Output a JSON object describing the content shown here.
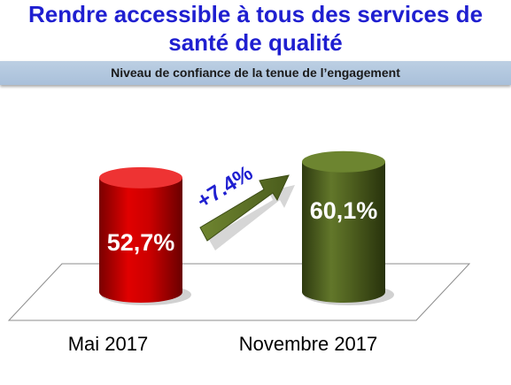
{
  "header": {
    "title_line1": "Rendre accessible à tous des services de",
    "title_line2": "santé de qualité",
    "subtitle": "Niveau de confiance de la tenue de l’engagement"
  },
  "chart_data": {
    "type": "bar",
    "style": "3d-cylinder",
    "categories": [
      "Mai 2017",
      "Novembre 2017"
    ],
    "values": [
      52.7,
      60.1
    ],
    "value_labels": [
      "52,7%",
      "60,1%"
    ],
    "colors": [
      "#cc0000",
      "#4d5e1e"
    ],
    "annotation": {
      "text": "+7.4%",
      "color": "#1f1fd0",
      "arrow_color": "#5a6e24"
    },
    "ylim": [
      0,
      100
    ],
    "grid": false
  }
}
